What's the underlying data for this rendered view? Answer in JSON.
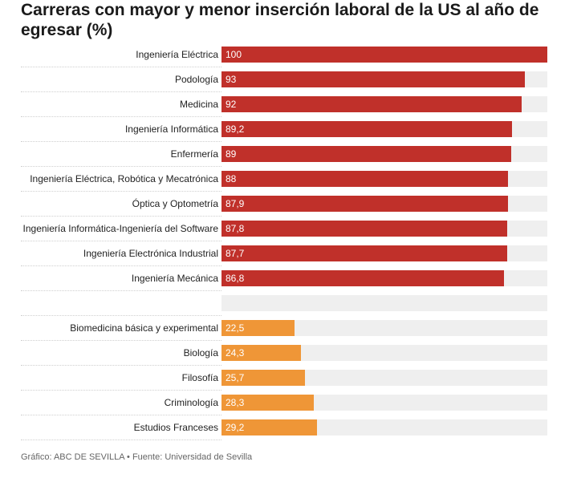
{
  "colors": {
    "top_bar": "#c0302a",
    "bottom_bar": "#ef9637",
    "track": "#efefef"
  },
  "footer": {
    "source": "Gráfico: ABC DE SEVILLA • Fuente: Universidad de Sevilla"
  },
  "chart_data": {
    "type": "bar",
    "orientation": "horizontal",
    "title": "Carreras con mayor y menor inserción laboral de la US al año de egresar (%)",
    "xlim": [
      0,
      100
    ],
    "grid": false,
    "legend": "none",
    "rows": [
      {
        "label": "Ingeniería Eléctrica",
        "value": 100,
        "display": "100",
        "group": "top"
      },
      {
        "label": "Podología",
        "value": 93,
        "display": "93",
        "group": "top"
      },
      {
        "label": "Medicina",
        "value": 92,
        "display": "92",
        "group": "top"
      },
      {
        "label": "Ingeniería Informática",
        "value": 89.2,
        "display": "89,2",
        "group": "top"
      },
      {
        "label": "Enfermería",
        "value": 89,
        "display": "89",
        "group": "top"
      },
      {
        "label": "Ingeniería Eléctrica, Robótica y Mecatrónica",
        "value": 88,
        "display": "88",
        "group": "top"
      },
      {
        "label": "Óptica y Optometría",
        "value": 87.9,
        "display": "87,9",
        "group": "top"
      },
      {
        "label": "Ingeniería Informática-Ingeniería del Software",
        "value": 87.8,
        "display": "87,8",
        "group": "top"
      },
      {
        "label": "Ingeniería Electrónica Industrial",
        "value": 87.7,
        "display": "87,7",
        "group": "top"
      },
      {
        "label": "Ingeniería Mecánica",
        "value": 86.8,
        "display": "86,8",
        "group": "top"
      },
      {
        "label": "",
        "value": 0,
        "display": "",
        "group": "spacer"
      },
      {
        "label": "Biomedicina básica y experimental",
        "value": 22.5,
        "display": "22,5",
        "group": "bottom"
      },
      {
        "label": "Biología",
        "value": 24.3,
        "display": "24,3",
        "group": "bottom"
      },
      {
        "label": "Filosofía",
        "value": 25.7,
        "display": "25,7",
        "group": "bottom"
      },
      {
        "label": "Criminología",
        "value": 28.3,
        "display": "28,3",
        "group": "bottom"
      },
      {
        "label": "Estudios Franceses",
        "value": 29.2,
        "display": "29,2",
        "group": "bottom"
      }
    ]
  }
}
